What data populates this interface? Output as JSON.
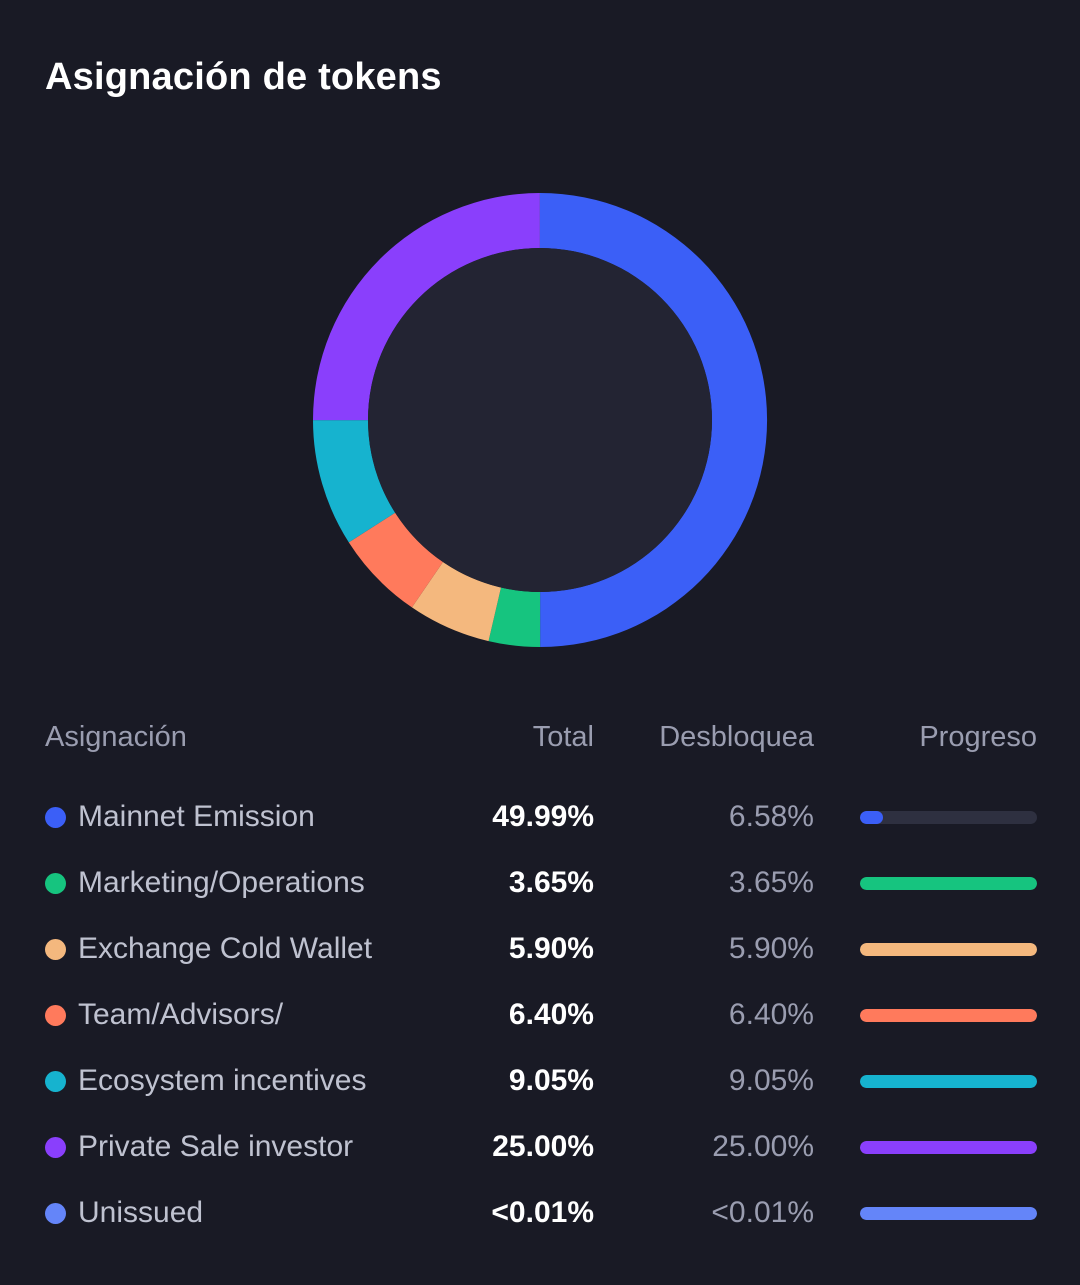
{
  "header": {
    "title": "Asignación de tokens"
  },
  "table": {
    "headers": {
      "allocation": "Asignación",
      "total": "Total",
      "unlocks": "Desbloquea",
      "progress": "Progreso"
    }
  },
  "chart_data": {
    "type": "pie",
    "title": "Asignación de tokens",
    "categories": [
      "Mainnet Emission",
      "Marketing/Operations",
      "Exchange Cold Wallet",
      "Team/Advisors/",
      "Ecosystem incentives",
      "Private Sale investor",
      "Unissued"
    ],
    "values": [
      49.99,
      3.65,
      5.9,
      6.4,
      9.05,
      25.0,
      0.01
    ],
    "colors": [
      "#3b5ff7",
      "#16c47f",
      "#f4b87e",
      "#ff7a5c",
      "#16b3cf",
      "#8a3ffc",
      "#6485f9"
    ]
  },
  "rows": [
    {
      "name": "Mainnet Emission",
      "total": "49.99%",
      "unlock": "6.58%",
      "progress": 0.1316,
      "color": "#3b5ff7"
    },
    {
      "name": "Marketing/Operations",
      "total": "3.65%",
      "unlock": "3.65%",
      "progress": 1,
      "color": "#16c47f"
    },
    {
      "name": "Exchange Cold Wallet",
      "total": "5.90%",
      "unlock": "5.90%",
      "progress": 1,
      "color": "#f4b87e"
    },
    {
      "name": "Team/Advisors/",
      "total": "6.40%",
      "unlock": "6.40%",
      "progress": 1,
      "color": "#ff7a5c"
    },
    {
      "name": "Ecosystem incentives",
      "total": "9.05%",
      "unlock": "9.05%",
      "progress": 1,
      "color": "#16b3cf"
    },
    {
      "name": "Private Sale investor",
      "total": "25.00%",
      "unlock": "25.00%",
      "progress": 1,
      "color": "#8a3ffc"
    },
    {
      "name": "Unissued",
      "total": "<0.01%",
      "unlock": "<0.01%",
      "progress": 1,
      "color": "#6485f9"
    }
  ]
}
